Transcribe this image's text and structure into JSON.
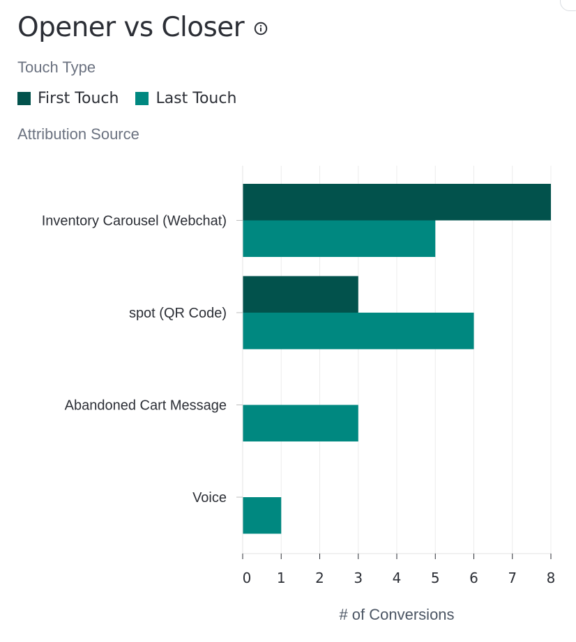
{
  "header": {
    "title": "Opener vs Closer",
    "info_icon": "info-icon"
  },
  "legend": {
    "heading": "Touch Type",
    "items": [
      {
        "label": "First Touch",
        "color": "#02524c"
      },
      {
        "label": "Last Touch",
        "color": "#008880"
      }
    ]
  },
  "chart_data": {
    "type": "bar",
    "orientation": "horizontal",
    "title": "Opener vs Closer",
    "ylabel": "Attribution Source",
    "xlabel": "# of Conversions",
    "categories": [
      "Inventory Carousel (Webchat)",
      "spot (QR Code)",
      "Abandoned Cart Message",
      "Voice"
    ],
    "series": [
      {
        "name": "First Touch",
        "color": "#02524c",
        "values": [
          8,
          3,
          0,
          0
        ]
      },
      {
        "name": "Last Touch",
        "color": "#008880",
        "values": [
          5,
          6,
          3,
          1
        ]
      }
    ],
    "xlim": [
      0,
      8
    ],
    "xticks": [
      0,
      1,
      2,
      3,
      4,
      5,
      6,
      7,
      8
    ],
    "grid": true,
    "legend_position": "top-left"
  }
}
